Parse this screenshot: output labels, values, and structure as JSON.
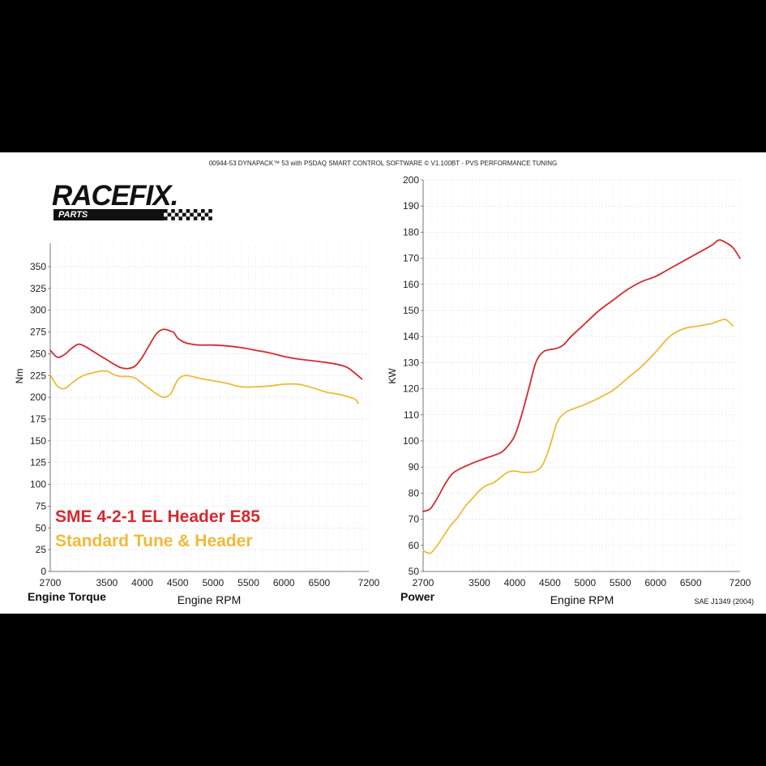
{
  "header": "00944-53 DYNAPACK™ 53 with PSDAQ SMART CONTROL SOFTWARE © V1.100BT - PVS PERFORMANCE TUNING",
  "logo": {
    "main": "RACEFIX.",
    "sub": "PARTS"
  },
  "legend": [
    {
      "label": "SME 4-2-1 EL Header E85",
      "color": "#d42a2f"
    },
    {
      "label": "Standard Tune & Header",
      "color": "#f1b93a"
    }
  ],
  "footer_note": "SAE J1349 (2004)",
  "chart_data": [
    {
      "type": "line",
      "title": "Engine Torque",
      "xlabel": "Engine RPM",
      "ylabel": "Nm",
      "xlim": [
        2700,
        7200
      ],
      "ylim": [
        0,
        375
      ],
      "xticks": [
        2700,
        3500,
        4000,
        4500,
        5000,
        5500,
        6000,
        6500,
        7200
      ],
      "yticks": [
        0,
        25,
        50,
        75,
        100,
        125,
        150,
        175,
        200,
        225,
        250,
        275,
        300,
        325,
        350
      ],
      "grid": true,
      "series": [
        {
          "name": "SME 4-2-1 EL Header E85",
          "color": "#d42a2f",
          "x": [
            2700,
            2800,
            2900,
            3000,
            3100,
            3200,
            3300,
            3400,
            3500,
            3600,
            3700,
            3800,
            3900,
            4000,
            4100,
            4200,
            4300,
            4400,
            4450,
            4500,
            4600,
            4700,
            4800,
            5000,
            5200,
            5400,
            5600,
            5800,
            6000,
            6200,
            6400,
            6600,
            6800,
            6900,
            7000,
            7100
          ],
          "y": [
            254,
            246,
            249,
            256,
            261,
            258,
            253,
            248,
            243,
            238,
            234,
            233,
            236,
            246,
            260,
            273,
            278,
            276,
            274,
            268,
            263,
            261,
            260,
            260,
            259,
            257,
            254,
            251,
            247,
            244,
            242,
            240,
            237,
            234,
            228,
            221
          ]
        },
        {
          "name": "Standard Tune & Header",
          "color": "#f1b93a",
          "x": [
            2700,
            2800,
            2900,
            3000,
            3100,
            3200,
            3300,
            3400,
            3500,
            3600,
            3700,
            3800,
            3900,
            4000,
            4100,
            4200,
            4300,
            4400,
            4500,
            4600,
            4700,
            4800,
            5000,
            5200,
            5400,
            5600,
            5800,
            6000,
            6200,
            6400,
            6600,
            6800,
            7000,
            7050
          ],
          "y": [
            226,
            213,
            210,
            216,
            222,
            226,
            228,
            230,
            230,
            226,
            224,
            224,
            222,
            216,
            210,
            204,
            200,
            204,
            220,
            225,
            224,
            222,
            219,
            216,
            212,
            212,
            213,
            215,
            215,
            211,
            206,
            203,
            198,
            193
          ]
        }
      ]
    },
    {
      "type": "line",
      "title": "Power",
      "xlabel": "Engine RPM",
      "ylabel": "KW",
      "xlim": [
        2700,
        7200
      ],
      "ylim": [
        50,
        200
      ],
      "xticks": [
        2700,
        3500,
        4000,
        4500,
        5000,
        5500,
        6000,
        6500,
        7200
      ],
      "yticks": [
        50,
        60,
        70,
        80,
        90,
        100,
        110,
        120,
        130,
        140,
        150,
        160,
        170,
        180,
        190,
        200
      ],
      "grid": true,
      "series": [
        {
          "name": "SME 4-2-1 EL Header E85",
          "color": "#d42a2f",
          "x": [
            2700,
            2800,
            2900,
            3000,
            3100,
            3200,
            3400,
            3600,
            3800,
            3900,
            4000,
            4100,
            4200,
            4300,
            4400,
            4500,
            4600,
            4700,
            4800,
            5000,
            5200,
            5400,
            5600,
            5800,
            6000,
            6200,
            6400,
            6600,
            6800,
            6900,
            7000,
            7100,
            7200
          ],
          "y": [
            73,
            74,
            78,
            83,
            87,
            89,
            91.5,
            93.5,
            95.5,
            98,
            102,
            110,
            120,
            130,
            134,
            135,
            135.5,
            137,
            140,
            145,
            150,
            154,
            158,
            161,
            163,
            166,
            169,
            172,
            175,
            177,
            176,
            174,
            170
          ]
        },
        {
          "name": "Standard Tune & Header",
          "color": "#f1b93a",
          "x": [
            2700,
            2800,
            2900,
            3000,
            3100,
            3200,
            3300,
            3400,
            3500,
            3600,
            3700,
            3800,
            3900,
            4000,
            4100,
            4200,
            4300,
            4400,
            4500,
            4600,
            4700,
            4800,
            5000,
            5200,
            5400,
            5600,
            5800,
            6000,
            6200,
            6400,
            6600,
            6800,
            6900,
            7000,
            7100
          ],
          "y": [
            58,
            57,
            60,
            64,
            68,
            71,
            75,
            78,
            81,
            83,
            84,
            86,
            88,
            88.5,
            88,
            88,
            88.5,
            91,
            98,
            107,
            110.5,
            112,
            114,
            116.5,
            119.5,
            124,
            128.5,
            134,
            140,
            143,
            144,
            145,
            146,
            146.5,
            144
          ]
        }
      ]
    }
  ]
}
